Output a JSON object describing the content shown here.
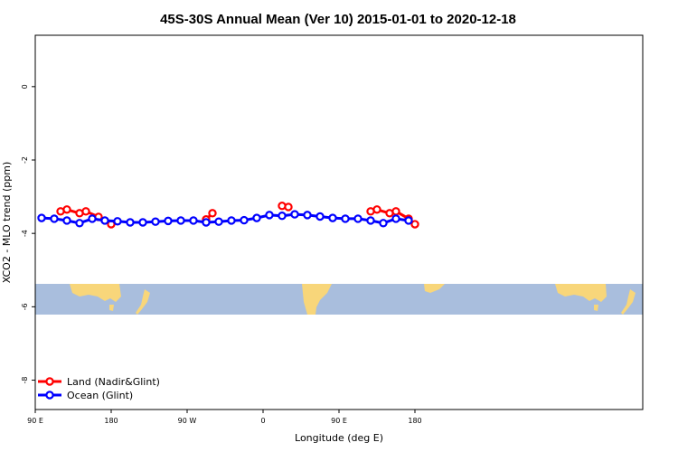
{
  "chart_data": {
    "type": "line",
    "title": "45S-30S Annual Mean (Ver 10)   2015-01-01 to 2020-12-18",
    "xlabel": "Longitude (deg E)",
    "ylabel": "XCO2 - MLO trend (ppm)",
    "x_unit_note": "degrees east, 90 to 450 (axis wraps past 180 into western hemisphere)",
    "xlim": [
      90,
      450
    ],
    "ylim": [
      -8.8,
      1.4
    ],
    "x_ticks": [
      {
        "value": 90,
        "label": "90 E"
      },
      {
        "value": 180,
        "label": "180"
      },
      {
        "value": 270,
        "label": "90 W"
      },
      {
        "value": 360,
        "label": "0"
      },
      {
        "value": 450,
        "label": "90 E"
      },
      {
        "value": 540,
        "label": "180"
      }
    ],
    "y_ticks": [
      {
        "value": 0,
        "label": "0"
      },
      {
        "value": -2,
        "label": "-2"
      },
      {
        "value": -4,
        "label": "-4"
      },
      {
        "value": -6,
        "label": "-6"
      },
      {
        "value": -8,
        "label": "-8"
      }
    ],
    "grid": false,
    "legend_position": "bottom-left",
    "map_strip": {
      "y_range": [
        -5.3,
        -6.1
      ],
      "ocean_color": "#a9bedd",
      "land_color": "#f8d67a"
    },
    "series": [
      {
        "name": "Land (Nadir&Glint)",
        "color": "#ff0000",
        "segments": [
          [
            {
              "x": 120,
              "y": -3.4
            },
            {
              "x": 127.5,
              "y": -3.35
            },
            {
              "x": 142.5,
              "y": -3.45
            },
            {
              "x": 150,
              "y": -3.4
            },
            {
              "x": 165,
              "y": -3.55
            },
            {
              "x": 180,
              "y": -3.75
            }
          ],
          [
            {
              "x": 292.5,
              "y": -3.62
            },
            {
              "x": 300,
              "y": -3.45
            }
          ],
          [
            {
              "x": 382.5,
              "y": -3.25
            },
            {
              "x": 390,
              "y": -3.28
            }
          ],
          [
            {
              "x": 487.5,
              "y": -3.4
            },
            {
              "x": 495,
              "y": -3.35
            },
            {
              "x": 510,
              "y": -3.45
            },
            {
              "x": 517.5,
              "y": -3.4
            },
            {
              "x": 532.5,
              "y": -3.6
            },
            {
              "x": 540,
              "y": -3.75
            }
          ]
        ]
      },
      {
        "name": "Ocean (Glint)",
        "color": "#0000ff",
        "segments": [
          [
            {
              "x": 97.5,
              "y": -3.58
            },
            {
              "x": 112.5,
              "y": -3.6
            },
            {
              "x": 127.5,
              "y": -3.65
            },
            {
              "x": 142.5,
              "y": -3.72
            },
            {
              "x": 157.5,
              "y": -3.6
            },
            {
              "x": 172.5,
              "y": -3.65
            },
            {
              "x": 187.5,
              "y": -3.67
            },
            {
              "x": 202.5,
              "y": -3.7
            },
            {
              "x": 217.5,
              "y": -3.7
            },
            {
              "x": 232.5,
              "y": -3.68
            },
            {
              "x": 247.5,
              "y": -3.66
            },
            {
              "x": 262.5,
              "y": -3.65
            },
            {
              "x": 277.5,
              "y": -3.65
            },
            {
              "x": 292.5,
              "y": -3.7
            },
            {
              "x": 307.5,
              "y": -3.68
            },
            {
              "x": 322.5,
              "y": -3.65
            },
            {
              "x": 337.5,
              "y": -3.64
            },
            {
              "x": 352.5,
              "y": -3.58
            },
            {
              "x": 367.5,
              "y": -3.5
            },
            {
              "x": 382.5,
              "y": -3.52
            },
            {
              "x": 397.5,
              "y": -3.48
            },
            {
              "x": 412.5,
              "y": -3.5
            },
            {
              "x": 427.5,
              "y": -3.54
            },
            {
              "x": 442.5,
              "y": -3.58
            },
            {
              "x": 457.5,
              "y": -3.6
            },
            {
              "x": 472.5,
              "y": -3.6
            },
            {
              "x": 487.5,
              "y": -3.65
            },
            {
              "x": 502.5,
              "y": -3.72
            },
            {
              "x": 517.5,
              "y": -3.6
            },
            {
              "x": 532.5,
              "y": -3.65
            }
          ]
        ]
      }
    ]
  }
}
